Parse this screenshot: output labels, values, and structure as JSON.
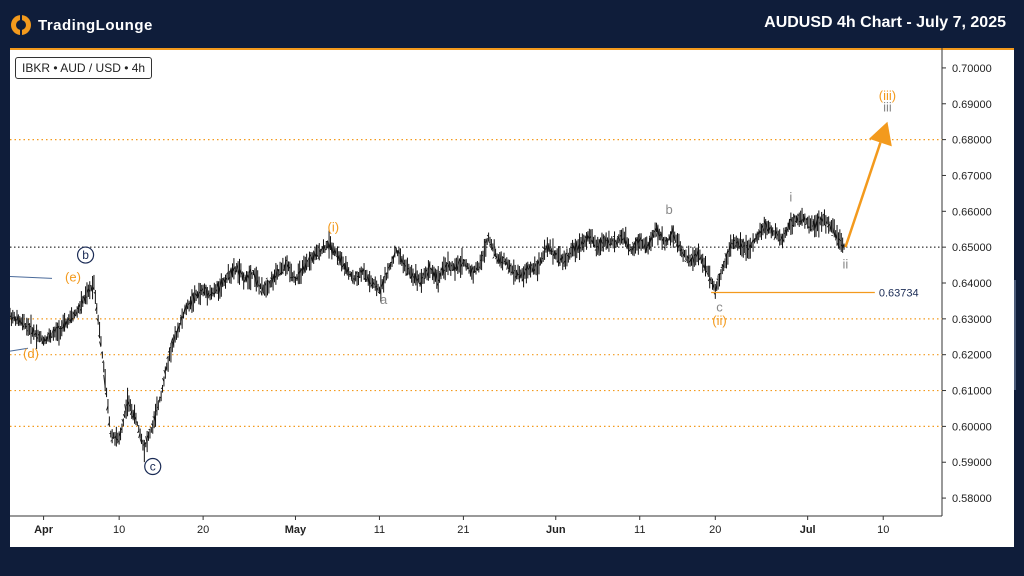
{
  "header": {
    "brand": "TradingLounge",
    "title": "AUDUSD 4h Chart - July 7, 2025"
  },
  "symbol_label": "IBKR • AUD / USD • 4h",
  "colors": {
    "orange": "#f39a1d",
    "navy": "#1a2b55",
    "gray": "#888888",
    "price": "#222222"
  },
  "chart_data": {
    "type": "line",
    "ylim": [
      0.575,
      0.705
    ],
    "y_ticks": [
      "0.70000",
      "0.69000",
      "0.68000",
      "0.67000",
      "0.66000",
      "0.65000",
      "0.64000",
      "0.63000",
      "0.62000",
      "0.61000",
      "0.60000",
      "0.59000",
      "0.58000"
    ],
    "x_ticks": [
      "Apr",
      "10",
      "20",
      "May",
      "11",
      "21",
      "Jun",
      "11",
      "20",
      "Jul",
      "10"
    ],
    "x_tick_days": [
      0,
      9,
      19,
      30,
      40,
      50,
      61,
      71,
      80,
      91,
      100
    ],
    "xlim": [
      -4,
      107
    ],
    "orange_levels": [
      0.68,
      0.63,
      0.62,
      0.61,
      0.6
    ],
    "current_price_level": 0.65,
    "invalidation_level": {
      "value": 0.63734,
      "label": "0.63734"
    },
    "projection": {
      "from": [
        95.5,
        0.65
      ],
      "to": [
        100.5,
        0.685
      ]
    },
    "series": [
      {
        "values": [
          [
            -4,
            0.631
          ],
          [
            -2,
            0.628
          ],
          [
            0,
            0.624
          ],
          [
            2,
            0.627
          ],
          [
            4,
            0.632
          ],
          [
            5,
            0.636
          ],
          [
            6,
            0.64
          ],
          [
            7,
            0.62
          ],
          [
            8,
            0.598
          ],
          [
            9,
            0.596
          ],
          [
            10,
            0.607
          ],
          [
            11,
            0.602
          ],
          [
            12,
            0.594
          ],
          [
            13,
            0.6
          ],
          [
            14,
            0.609
          ],
          [
            15,
            0.62
          ],
          [
            16,
            0.627
          ],
          [
            17,
            0.633
          ],
          [
            18,
            0.636
          ],
          [
            19,
            0.638
          ],
          [
            20,
            0.637
          ],
          [
            21,
            0.639
          ],
          [
            22,
            0.642
          ],
          [
            23,
            0.644
          ],
          [
            24,
            0.641
          ],
          [
            25,
            0.643
          ],
          [
            26,
            0.638
          ],
          [
            27,
            0.64
          ],
          [
            28,
            0.643
          ],
          [
            29,
            0.645
          ],
          [
            30,
            0.641
          ],
          [
            31,
            0.644
          ],
          [
            32,
            0.647
          ],
          [
            33,
            0.649
          ],
          [
            34,
            0.651
          ],
          [
            35,
            0.648
          ],
          [
            36,
            0.644
          ],
          [
            37,
            0.641
          ],
          [
            38,
            0.643
          ],
          [
            39,
            0.64
          ],
          [
            40,
            0.638
          ],
          [
            41,
            0.643
          ],
          [
            42,
            0.649
          ],
          [
            43,
            0.645
          ],
          [
            44,
            0.642
          ],
          [
            45,
            0.641
          ],
          [
            46,
            0.644
          ],
          [
            47,
            0.641
          ],
          [
            48,
            0.645
          ],
          [
            49,
            0.644
          ],
          [
            50,
            0.646
          ],
          [
            51,
            0.643
          ],
          [
            52,
            0.645
          ],
          [
            53,
            0.653
          ],
          [
            54,
            0.647
          ],
          [
            55,
            0.646
          ],
          [
            56,
            0.643
          ],
          [
            57,
            0.642
          ],
          [
            58,
            0.644
          ],
          [
            59,
            0.645
          ],
          [
            60,
            0.65
          ],
          [
            61,
            0.648
          ],
          [
            62,
            0.646
          ],
          [
            63,
            0.649
          ],
          [
            64,
            0.651
          ],
          [
            65,
            0.653
          ],
          [
            66,
            0.65
          ],
          [
            67,
            0.652
          ],
          [
            68,
            0.651
          ],
          [
            69,
            0.653
          ],
          [
            70,
            0.649
          ],
          [
            71,
            0.652
          ],
          [
            72,
            0.65
          ],
          [
            73,
            0.655
          ],
          [
            74,
            0.651
          ],
          [
            75,
            0.654
          ],
          [
            76,
            0.649
          ],
          [
            77,
            0.646
          ],
          [
            78,
            0.648
          ],
          [
            79,
            0.644
          ],
          [
            80,
            0.638
          ],
          [
            81,
            0.645
          ],
          [
            82,
            0.651
          ],
          [
            83,
            0.651
          ],
          [
            84,
            0.649
          ],
          [
            85,
            0.653
          ],
          [
            86,
            0.656
          ],
          [
            87,
            0.654
          ],
          [
            88,
            0.652
          ],
          [
            89,
            0.657
          ],
          [
            90,
            0.658
          ],
          [
            91,
            0.657
          ],
          [
            92,
            0.656
          ],
          [
            93,
            0.658
          ],
          [
            94,
            0.655
          ],
          [
            95,
            0.651
          ],
          [
            95.5,
            0.65
          ]
        ]
      }
    ],
    "wave_labels": [
      {
        "text": "(e)",
        "x": 3.5,
        "y": 0.6418,
        "color": "orange",
        "style": "plain"
      },
      {
        "text": "(d)",
        "x": -1.5,
        "y": 0.6205,
        "color": "orange",
        "style": "plain"
      },
      {
        "text": "b",
        "x": 5,
        "y": 0.6478,
        "color": "navy",
        "style": "circle"
      },
      {
        "text": "c",
        "x": 13,
        "y": 0.5888,
        "color": "navy",
        "style": "circle"
      },
      {
        "text": "(i)",
        "x": 34.5,
        "y": 0.6557,
        "color": "orange",
        "style": "plain"
      },
      {
        "text": "a",
        "x": 40.5,
        "y": 0.6355,
        "color": "gray",
        "style": "plain"
      },
      {
        "text": "b",
        "x": 74.5,
        "y": 0.6607,
        "color": "gray",
        "style": "plain"
      },
      {
        "text": "c",
        "x": 80.5,
        "y": 0.6335,
        "color": "gray",
        "style": "plain"
      },
      {
        "text": "(ii)",
        "x": 80.5,
        "y": 0.6297,
        "color": "orange",
        "style": "plain"
      },
      {
        "text": "i",
        "x": 89,
        "y": 0.6642,
        "color": "gray",
        "style": "plain"
      },
      {
        "text": "ii",
        "x": 95.5,
        "y": 0.6455,
        "color": "gray",
        "style": "plain"
      },
      {
        "text": "(iii)",
        "x": 100.5,
        "y": 0.6925,
        "color": "orange",
        "style": "plain"
      },
      {
        "text": "iii",
        "x": 100.5,
        "y": 0.6893,
        "color": "gray",
        "style": "plain"
      }
    ]
  }
}
